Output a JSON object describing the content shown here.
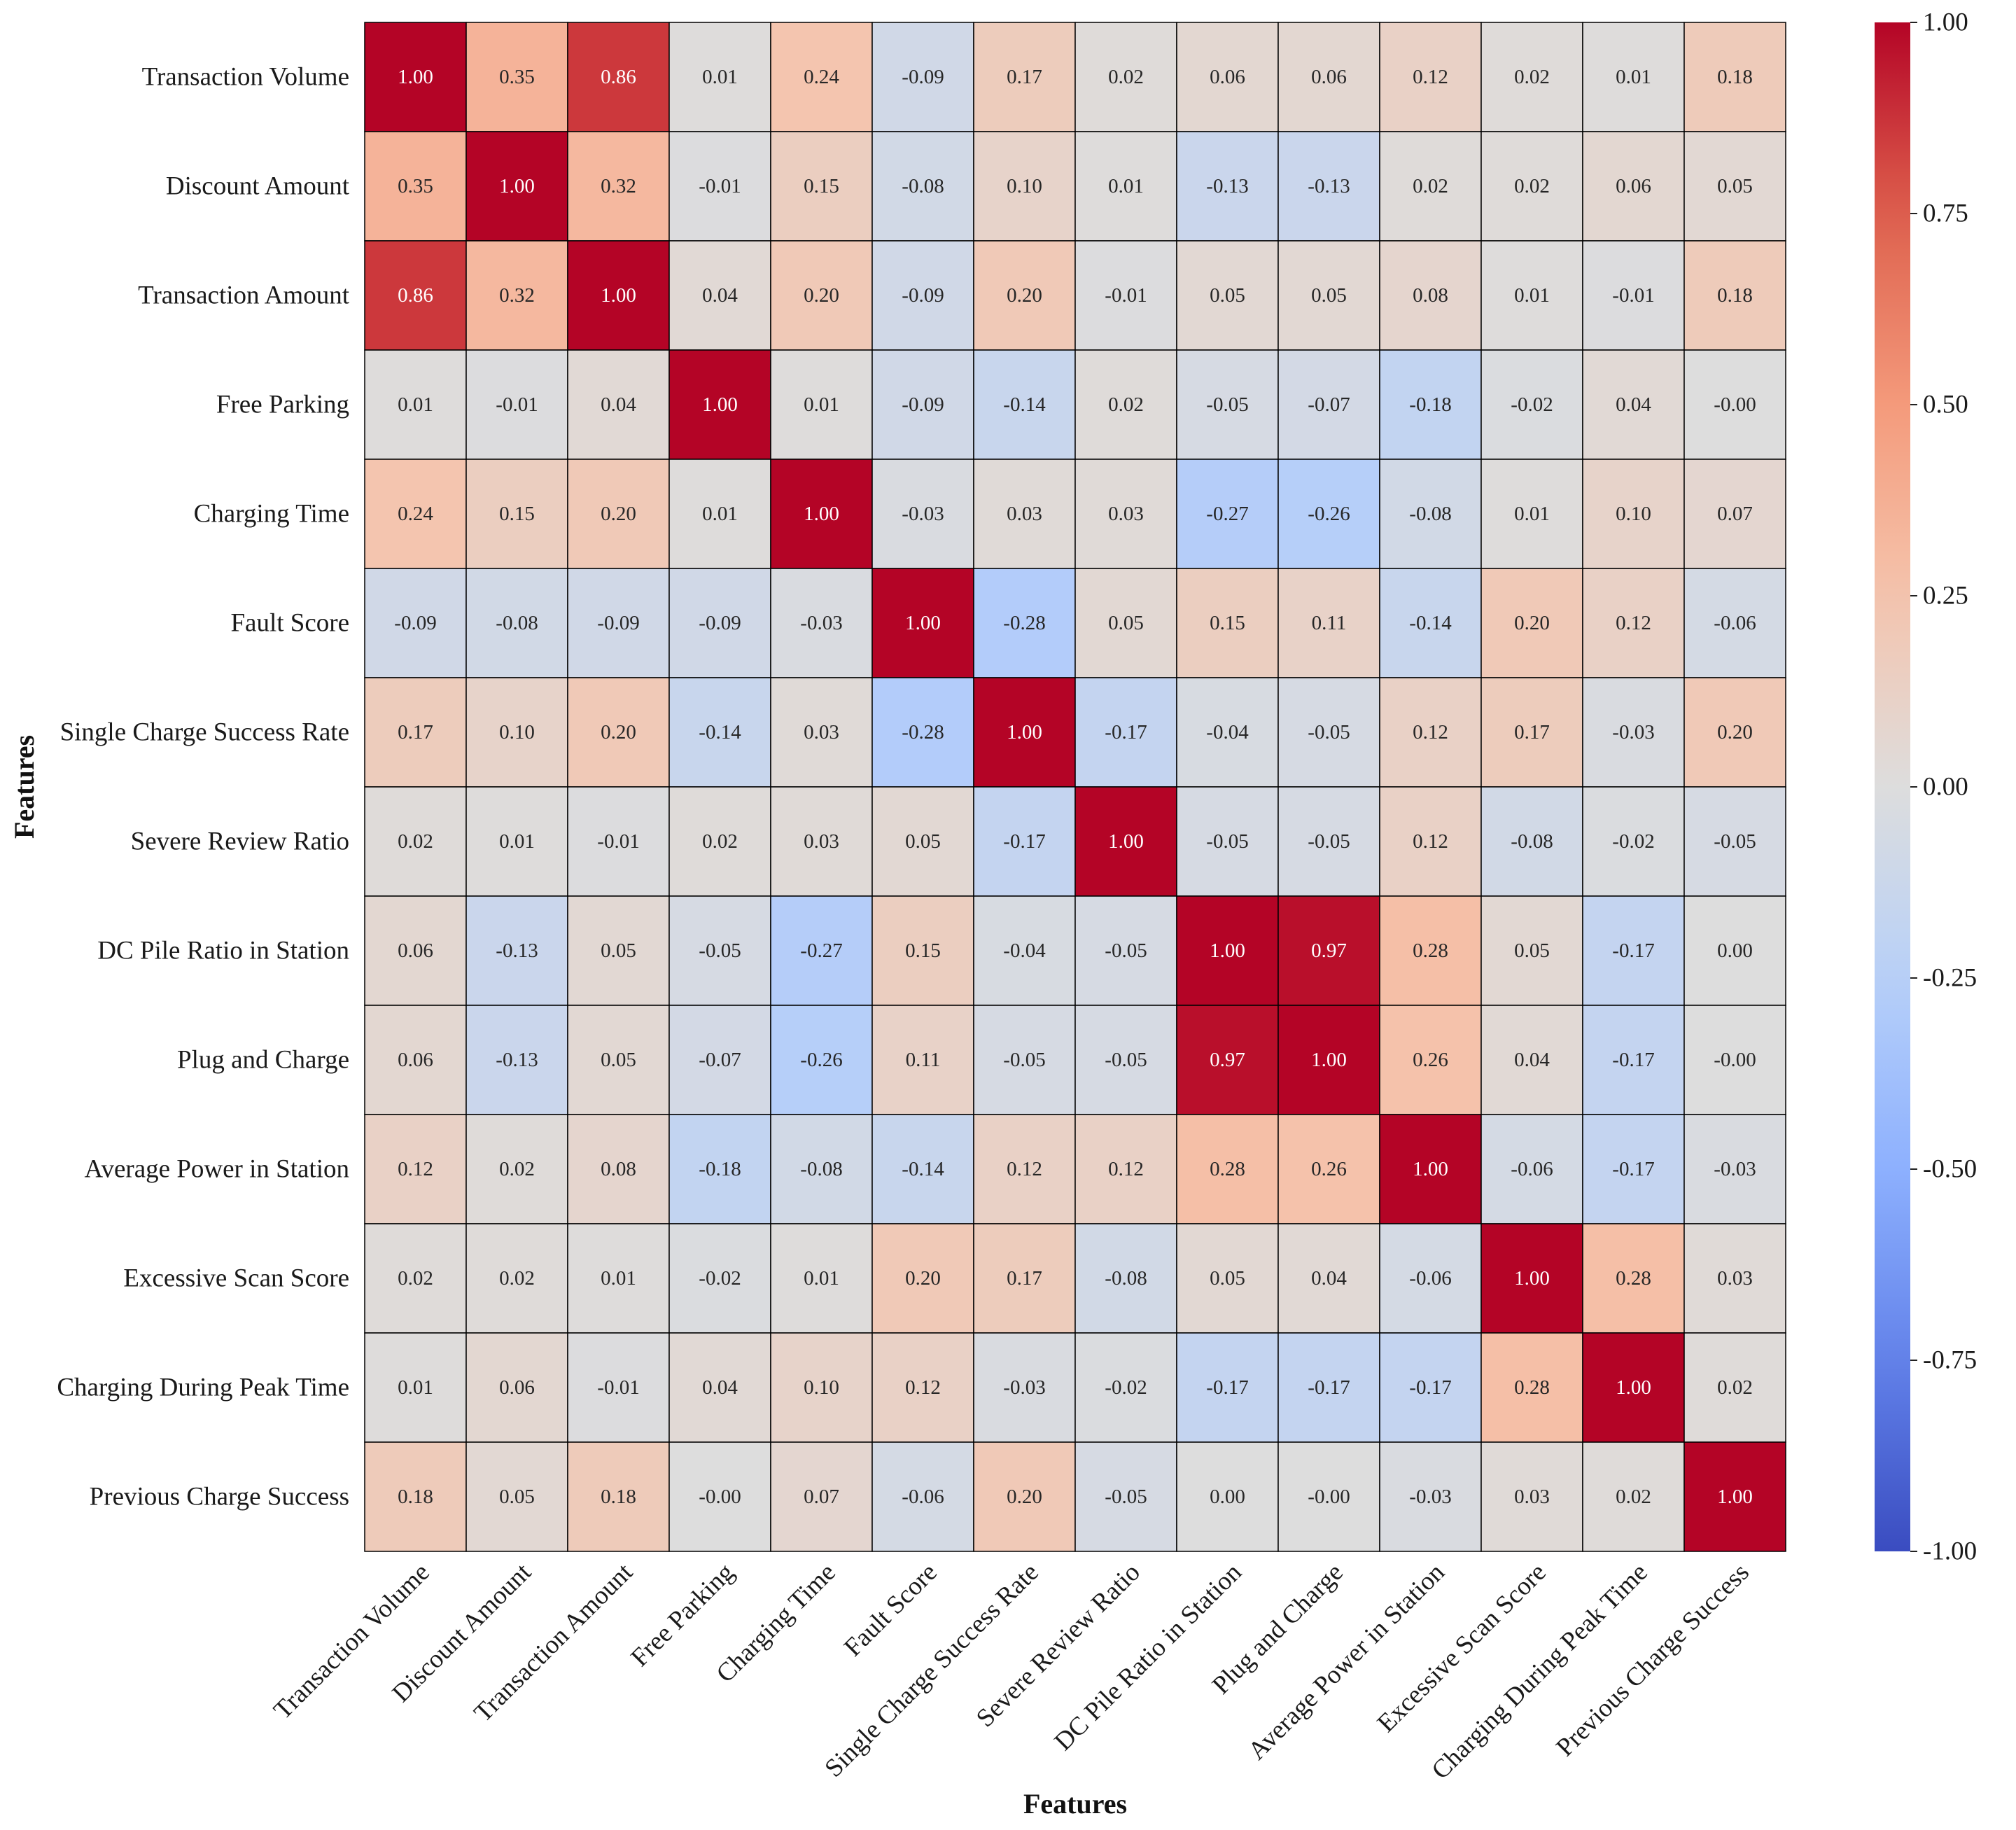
{
  "chart_data": {
    "type": "heatmap",
    "title": "",
    "xlabel": "Features",
    "ylabel": "Features",
    "colormap": "coolwarm",
    "vmin": -1.0,
    "vmax": 1.0,
    "annotation_format": "0.00",
    "row_labels": [
      "Transaction Volume",
      "Discount Amount",
      "Transaction Amount",
      "Free Parking",
      "Charging Time",
      "Fault Score",
      "Single Charge Success Rate",
      "Severe Review Ratio",
      "DC Pile Ratio in Station",
      "Plug and Charge",
      "Average Power in Station",
      "Excessive Scan Score",
      "Charging During Peak Time",
      "Previous Charge Success"
    ],
    "col_labels": [
      "Transaction Volume",
      "Discount Amount",
      "Transaction Amount",
      "Free Parking",
      "Charging Time",
      "Fault Score",
      "Single Charge Success Rate",
      "Severe Review Ratio",
      "DC Pile Ratio in Station",
      "Plug and Charge",
      "Average Power in Station",
      "Excessive Scan Score",
      "Charging During Peak Time",
      "Previous Charge Success"
    ],
    "values": [
      [
        "1.00",
        "0.35",
        "0.86",
        "0.01",
        "0.24",
        "-0.09",
        "0.17",
        "0.02",
        "0.06",
        "0.06",
        "0.12",
        "0.02",
        "0.01",
        "0.18"
      ],
      [
        "0.35",
        "1.00",
        "0.32",
        "-0.01",
        "0.15",
        "-0.08",
        "0.10",
        "0.01",
        "-0.13",
        "-0.13",
        "0.02",
        "0.02",
        "0.06",
        "0.05"
      ],
      [
        "0.86",
        "0.32",
        "1.00",
        "0.04",
        "0.20",
        "-0.09",
        "0.20",
        "-0.01",
        "0.05",
        "0.05",
        "0.08",
        "0.01",
        "-0.01",
        "0.18"
      ],
      [
        "0.01",
        "-0.01",
        "0.04",
        "1.00",
        "0.01",
        "-0.09",
        "-0.14",
        "0.02",
        "-0.05",
        "-0.07",
        "-0.18",
        "-0.02",
        "0.04",
        "-0.00"
      ],
      [
        "0.24",
        "0.15",
        "0.20",
        "0.01",
        "1.00",
        "-0.03",
        "0.03",
        "0.03",
        "-0.27",
        "-0.26",
        "-0.08",
        "0.01",
        "0.10",
        "0.07"
      ],
      [
        "-0.09",
        "-0.08",
        "-0.09",
        "-0.09",
        "-0.03",
        "1.00",
        "-0.28",
        "0.05",
        "0.15",
        "0.11",
        "-0.14",
        "0.20",
        "0.12",
        "-0.06"
      ],
      [
        "0.17",
        "0.10",
        "0.20",
        "-0.14",
        "0.03",
        "-0.28",
        "1.00",
        "-0.17",
        "-0.04",
        "-0.05",
        "0.12",
        "0.17",
        "-0.03",
        "0.20"
      ],
      [
        "0.02",
        "0.01",
        "-0.01",
        "0.02",
        "0.03",
        "0.05",
        "-0.17",
        "1.00",
        "-0.05",
        "-0.05",
        "0.12",
        "-0.08",
        "-0.02",
        "-0.05"
      ],
      [
        "0.06",
        "-0.13",
        "0.05",
        "-0.05",
        "-0.27",
        "0.15",
        "-0.04",
        "-0.05",
        "1.00",
        "0.97",
        "0.28",
        "0.05",
        "-0.17",
        "0.00"
      ],
      [
        "0.06",
        "-0.13",
        "0.05",
        "-0.07",
        "-0.26",
        "0.11",
        "-0.05",
        "-0.05",
        "0.97",
        "1.00",
        "0.26",
        "0.04",
        "-0.17",
        "-0.00"
      ],
      [
        "0.12",
        "0.02",
        "0.08",
        "-0.18",
        "-0.08",
        "-0.14",
        "0.12",
        "0.12",
        "0.28",
        "0.26",
        "1.00",
        "-0.06",
        "-0.17",
        "-0.03"
      ],
      [
        "0.02",
        "0.02",
        "0.01",
        "-0.02",
        "0.01",
        "0.20",
        "0.17",
        "-0.08",
        "0.05",
        "0.04",
        "-0.06",
        "1.00",
        "0.28",
        "0.03"
      ],
      [
        "0.01",
        "0.06",
        "-0.01",
        "0.04",
        "0.10",
        "0.12",
        "-0.03",
        "-0.02",
        "-0.17",
        "-0.17",
        "-0.17",
        "0.28",
        "1.00",
        "0.02"
      ],
      [
        "0.18",
        "0.05",
        "0.18",
        "-0.00",
        "0.07",
        "-0.06",
        "0.20",
        "-0.05",
        "0.00",
        "-0.00",
        "-0.03",
        "0.03",
        "0.02",
        "1.00"
      ]
    ],
    "colorbar": {
      "ticks": [
        "1.00",
        "0.75",
        "0.50",
        "0.25",
        "0.00",
        "-0.25",
        "-0.50",
        "-0.75",
        "-1.00"
      ]
    }
  }
}
